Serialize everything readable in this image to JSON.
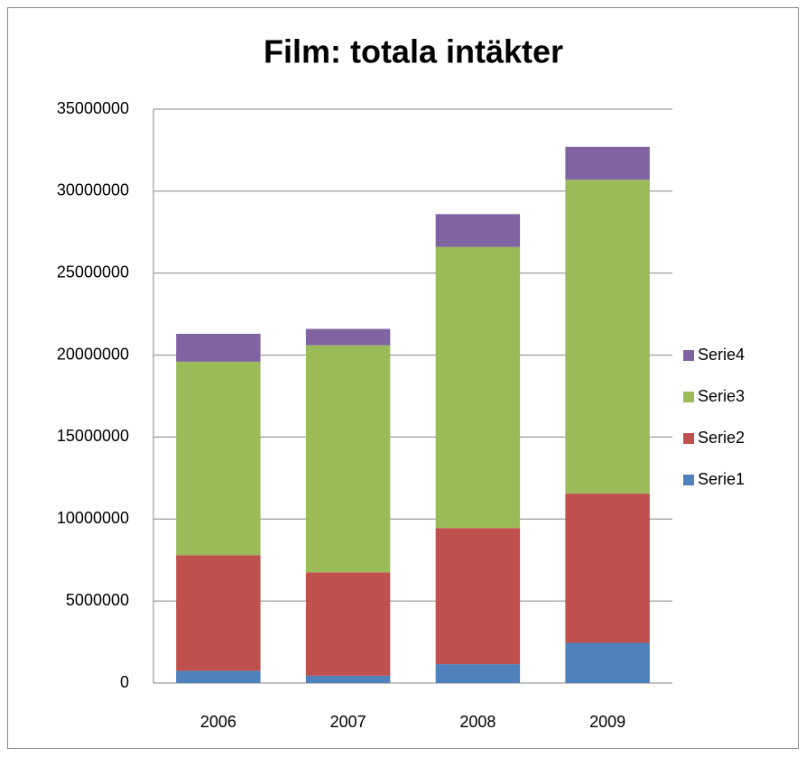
{
  "chart_data": {
    "type": "stacked_bar",
    "title": "Film: totala intäkter",
    "categories": [
      "2006",
      "2007",
      "2008",
      "2009"
    ],
    "series": [
      {
        "name": "Serie1",
        "color": "#4f81bd",
        "values": [
          750000,
          450000,
          1150000,
          2450000
        ]
      },
      {
        "name": "Serie2",
        "color": "#c0504d",
        "values": [
          7050000,
          6300000,
          8300000,
          9100000
        ]
      },
      {
        "name": "Serie3",
        "color": "#9bbb59",
        "values": [
          11800000,
          13850000,
          17150000,
          19150000
        ]
      },
      {
        "name": "Serie4",
        "color": "#8064a2",
        "values": [
          1700000,
          1000000,
          2000000,
          2000000
        ]
      }
    ],
    "ylim": [
      0,
      35000000
    ],
    "yticks": [
      0,
      5000000,
      10000000,
      15000000,
      20000000,
      25000000,
      30000000,
      35000000
    ],
    "grid": true,
    "legend": "right"
  }
}
